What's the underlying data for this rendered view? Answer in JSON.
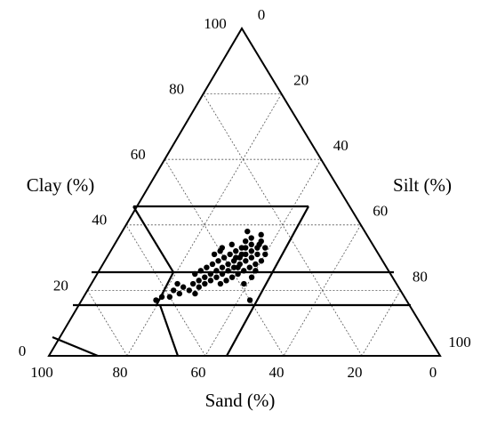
{
  "chart_data": {
    "type": "ternary",
    "sand_label": "Sand (%)",
    "clay_label": "Clay (%)",
    "silt_label": "Silt (%)",
    "sand_lim": [
      0,
      100
    ],
    "clay_lim": [
      0,
      100
    ],
    "silt_lim": [
      0,
      100
    ],
    "sand_ticks": [
      100,
      80,
      60,
      40,
      20,
      0
    ],
    "clay_ticks": [
      0,
      20,
      40,
      60,
      80,
      100
    ],
    "silt_ticks": [
      0,
      20,
      40,
      60,
      80,
      100
    ],
    "grid": true,
    "color": "#000000",
    "sand": [
      64,
      62,
      60,
      58,
      57,
      55,
      54,
      52,
      51,
      50,
      49,
      48,
      47,
      46,
      45,
      44,
      43,
      42,
      41,
      40,
      39,
      38,
      37,
      36,
      35,
      34,
      33,
      32,
      31,
      30,
      29,
      28,
      27,
      40,
      38,
      36,
      34,
      42,
      44,
      39,
      37,
      35,
      33,
      41,
      43,
      45,
      36,
      32,
      30,
      35,
      40,
      38,
      34,
      31,
      29,
      39,
      37,
      33,
      46,
      48,
      50,
      31,
      28,
      39,
      40,
      36,
      53,
      56,
      42,
      30
    ],
    "clay": [
      17,
      18,
      18,
      20,
      19,
      21,
      20,
      22,
      21,
      23,
      22,
      24,
      23,
      25,
      24,
      26,
      25,
      27,
      26,
      28,
      27,
      29,
      28,
      30,
      29,
      31,
      30,
      32,
      31,
      33,
      34,
      35,
      37,
      30,
      31,
      32,
      33,
      29,
      28,
      25,
      26,
      27,
      28,
      24,
      23,
      22,
      34,
      35,
      36,
      31,
      32,
      27,
      26,
      29,
      31,
      33,
      30,
      33,
      27,
      26,
      25,
      34,
      33,
      22,
      17,
      24,
      19,
      22,
      31,
      38
    ]
  }
}
